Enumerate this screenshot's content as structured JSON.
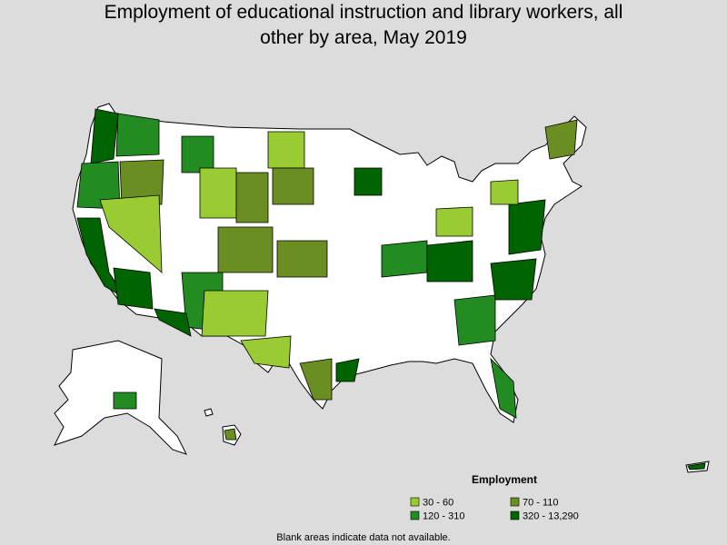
{
  "title": "Employment of educational instruction and library workers, all other by area, May 2019",
  "legend": {
    "title": "Employment",
    "items": [
      {
        "label": "30 - 60",
        "color": "#99cc33"
      },
      {
        "label": "70 - 110",
        "color": "#6b8e23"
      },
      {
        "label": "120 - 310",
        "color": "#228b22"
      },
      {
        "label": "320 - 13,290",
        "color": "#006400"
      }
    ]
  },
  "note": "Blank areas indicate data not available."
}
